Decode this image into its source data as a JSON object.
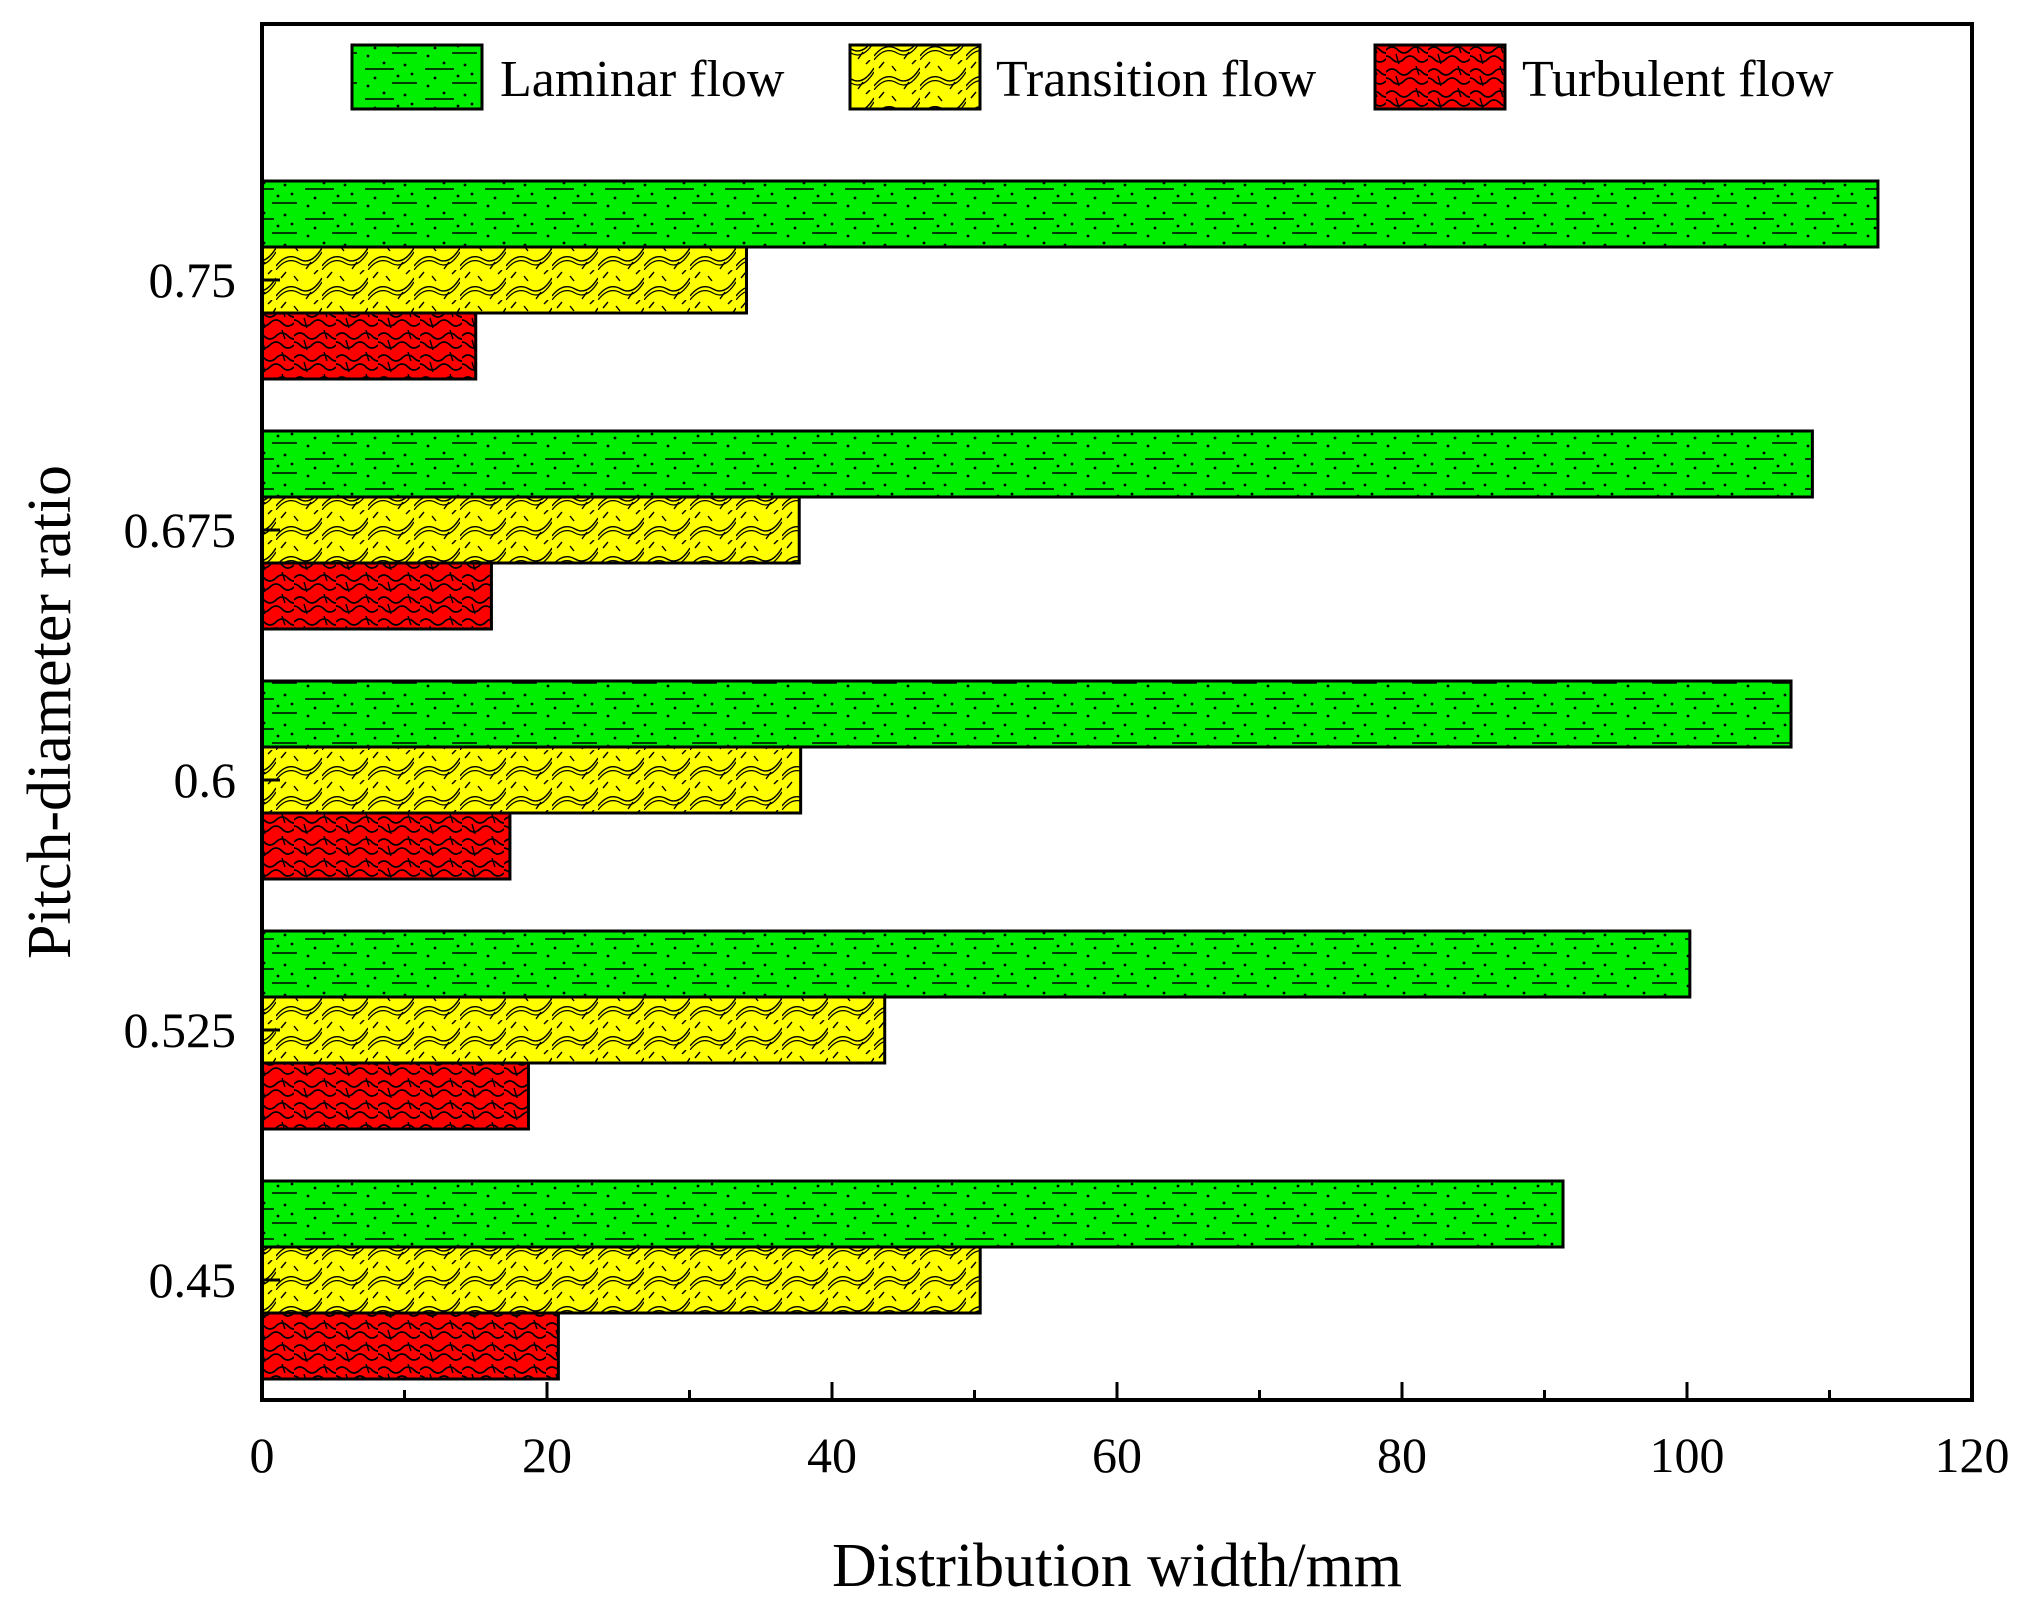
{
  "chart_data": {
    "type": "bar",
    "orientation": "horizontal",
    "title": "",
    "xlabel": "Distribution width/mm",
    "ylabel": "Pitch-diameter ratio",
    "xlim": [
      0,
      120
    ],
    "xticks": [
      0,
      20,
      40,
      60,
      80,
      100,
      120
    ],
    "categories": [
      "0.45",
      "0.525",
      "0.6",
      "0.675",
      "0.75"
    ],
    "series": [
      {
        "name": "Laminar flow",
        "color": "#00ee00",
        "pattern": "dots-dashes",
        "values": [
          91.3,
          100.2,
          107.3,
          108.8,
          113.4
        ]
      },
      {
        "name": "Transition flow",
        "color": "#ffff00",
        "pattern": "waves-slashes",
        "values": [
          50.4,
          43.7,
          37.8,
          37.7,
          34.0
        ]
      },
      {
        "name": "Turbulent flow",
        "color": "#ff0000",
        "pattern": "squiggles",
        "values": [
          20.8,
          18.7,
          17.4,
          16.1,
          15.0
        ]
      }
    ],
    "legend": "top",
    "grid": false
  }
}
